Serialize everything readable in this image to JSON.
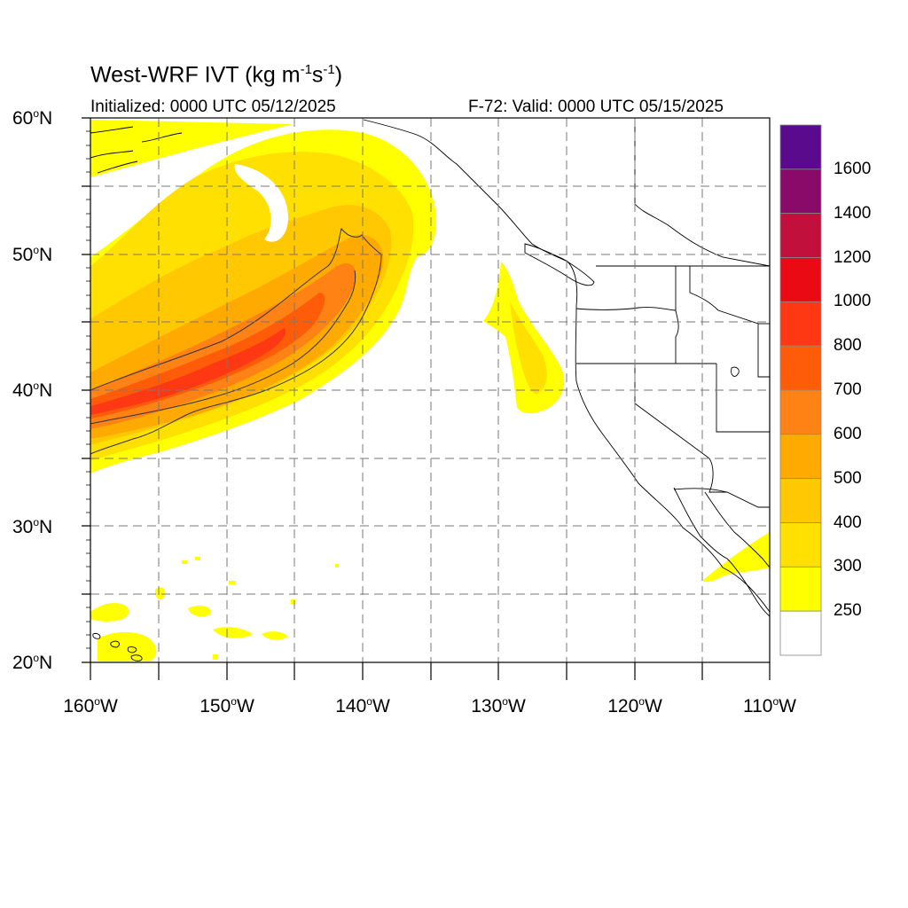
{
  "title": {
    "main": "West-WRF IVT (kg m",
    "exp1": "-1",
    "mid": "s",
    "exp2": "-1",
    "close": ")"
  },
  "initialized": "Initialized: 0000 UTC 05/12/2025",
  "valid": "F-72: Valid: 0000 UTC 05/15/2025",
  "lat_labels": [
    {
      "deg": "60",
      "hemi": "N"
    },
    {
      "deg": "50",
      "hemi": "N"
    },
    {
      "deg": "40",
      "hemi": "N"
    },
    {
      "deg": "30",
      "hemi": "N"
    },
    {
      "deg": "20",
      "hemi": "N"
    }
  ],
  "lon_labels": [
    {
      "deg": "160",
      "hemi": "W"
    },
    {
      "deg": "150",
      "hemi": "W"
    },
    {
      "deg": "140",
      "hemi": "W"
    },
    {
      "deg": "130",
      "hemi": "W"
    },
    {
      "deg": "120",
      "hemi": "W"
    },
    {
      "deg": "110",
      "hemi": "W"
    }
  ],
  "colorbar": {
    "labels": [
      "1600",
      "1400",
      "1200",
      "1000",
      "800",
      "700",
      "600",
      "500",
      "400",
      "300",
      "250"
    ],
    "colors": [
      "#5a0a8c",
      "#8a0a6a",
      "#c2103c",
      "#ea0a14",
      "#ff3814",
      "#ff5c0a",
      "#ff8214",
      "#ffaa00",
      "#ffc800",
      "#ffe000",
      "#ffff00",
      "#ffffff"
    ]
  },
  "fill_colors": {
    "ivt_250": "#ffff00",
    "ivt_300": "#ffe000",
    "ivt_400": "#ffc800",
    "ivt_500": "#ffaa00",
    "ivt_600": "#ff8214",
    "ivt_700": "#ff5c0a",
    "ivt_800": "#ff3814"
  }
}
